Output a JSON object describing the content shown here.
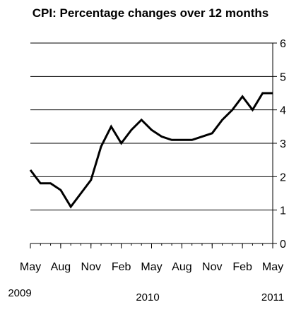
{
  "chart_data": {
    "type": "line",
    "title": "CPI: Percentage changes over 12 months",
    "xlabel": "",
    "ylabel": "",
    "ylim": [
      0,
      6
    ],
    "yticks": [
      "0",
      "1",
      "2",
      "3",
      "4",
      "5",
      "6"
    ],
    "y_axis_side": "right",
    "grid": "horizontal",
    "x_tick_labels": [
      "May",
      "Aug",
      "Nov",
      "Feb",
      "May",
      "Aug",
      "Nov",
      "Feb",
      "May"
    ],
    "year_labels": [
      "2009",
      "2010",
      "2011"
    ],
    "x": [
      "2009-05",
      "2009-06",
      "2009-07",
      "2009-08",
      "2009-09",
      "2009-10",
      "2009-11",
      "2009-12",
      "2010-01",
      "2010-02",
      "2010-03",
      "2010-04",
      "2010-05",
      "2010-06",
      "2010-07",
      "2010-08",
      "2010-09",
      "2010-10",
      "2010-11",
      "2010-12",
      "2011-01",
      "2011-02",
      "2011-03",
      "2011-04",
      "2011-05"
    ],
    "series": [
      {
        "values": [
          2.2,
          1.8,
          1.8,
          1.6,
          1.1,
          1.5,
          1.9,
          2.9,
          3.5,
          3.0,
          3.4,
          3.7,
          3.4,
          3.2,
          3.1,
          3.1,
          3.1,
          3.2,
          3.3,
          3.7,
          4.0,
          4.4,
          4.0,
          4.5,
          4.5
        ],
        "color": "#000000"
      }
    ]
  }
}
